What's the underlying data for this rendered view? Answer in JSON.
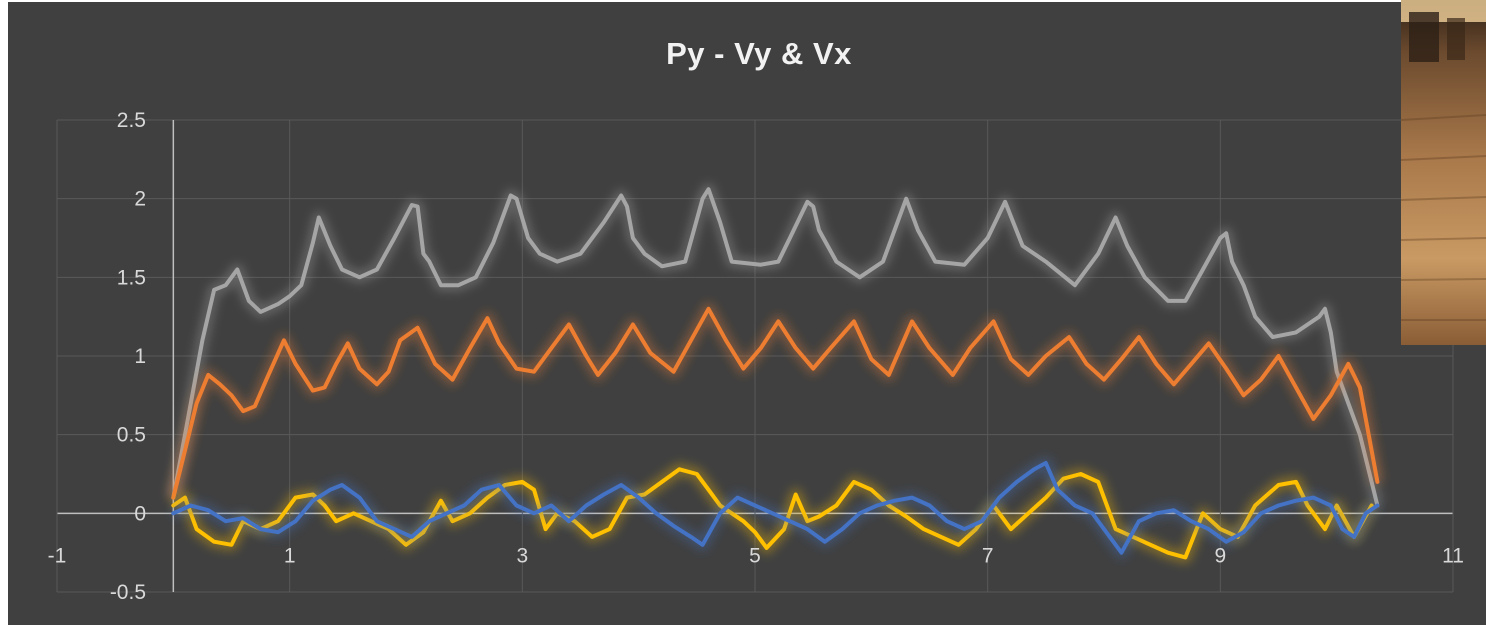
{
  "chart_data": {
    "type": "scatter",
    "title": "Py - Vy & Vx",
    "xlim": [
      -1,
      11
    ],
    "ylim": [
      -0.5,
      2.5
    ],
    "x_ticks": [
      -1,
      1,
      3,
      5,
      7,
      9,
      11
    ],
    "x_tick_labels": [
      "-1",
      "1",
      "3",
      "5",
      "7",
      "9",
      "11"
    ],
    "y_ticks": [
      -0.5,
      0,
      0.5,
      1,
      1.5,
      2,
      2.5
    ],
    "y_tick_labels": [
      "-0.5",
      "0",
      "0.5",
      "1",
      "1.5",
      "2",
      "2.5"
    ],
    "grid": true,
    "legend": "none",
    "series": [
      {
        "color": "#a5a5a5",
        "points": [
          [
            0,
            0.1
          ],
          [
            0.05,
            0.3
          ],
          [
            0.15,
            0.7
          ],
          [
            0.25,
            1.1
          ],
          [
            0.35,
            1.42
          ],
          [
            0.45,
            1.45
          ],
          [
            0.55,
            1.55
          ],
          [
            0.65,
            1.35
          ],
          [
            0.75,
            1.28
          ],
          [
            0.9,
            1.33
          ],
          [
            1.0,
            1.38
          ],
          [
            1.1,
            1.45
          ],
          [
            1.2,
            1.72
          ],
          [
            1.25,
            1.88
          ],
          [
            1.35,
            1.7
          ],
          [
            1.45,
            1.55
          ],
          [
            1.6,
            1.5
          ],
          [
            1.75,
            1.55
          ],
          [
            1.9,
            1.75
          ],
          [
            2.05,
            1.96
          ],
          [
            2.1,
            1.95
          ],
          [
            2.15,
            1.65
          ],
          [
            2.2,
            1.6
          ],
          [
            2.3,
            1.45
          ],
          [
            2.45,
            1.45
          ],
          [
            2.6,
            1.5
          ],
          [
            2.75,
            1.72
          ],
          [
            2.9,
            2.02
          ],
          [
            2.95,
            2.0
          ],
          [
            3.05,
            1.75
          ],
          [
            3.15,
            1.65
          ],
          [
            3.3,
            1.6
          ],
          [
            3.5,
            1.65
          ],
          [
            3.7,
            1.85
          ],
          [
            3.85,
            2.02
          ],
          [
            3.9,
            1.95
          ],
          [
            3.95,
            1.75
          ],
          [
            4.05,
            1.65
          ],
          [
            4.2,
            1.57
          ],
          [
            4.4,
            1.6
          ],
          [
            4.55,
            2.0
          ],
          [
            4.6,
            2.06
          ],
          [
            4.7,
            1.85
          ],
          [
            4.8,
            1.6
          ],
          [
            5.05,
            1.58
          ],
          [
            5.2,
            1.6
          ],
          [
            5.3,
            1.75
          ],
          [
            5.45,
            1.98
          ],
          [
            5.5,
            1.95
          ],
          [
            5.55,
            1.8
          ],
          [
            5.7,
            1.6
          ],
          [
            5.9,
            1.5
          ],
          [
            6.1,
            1.6
          ],
          [
            6.25,
            1.9
          ],
          [
            6.3,
            2.0
          ],
          [
            6.4,
            1.8
          ],
          [
            6.55,
            1.6
          ],
          [
            6.8,
            1.58
          ],
          [
            7.0,
            1.75
          ],
          [
            7.15,
            1.98
          ],
          [
            7.3,
            1.7
          ],
          [
            7.5,
            1.6
          ],
          [
            7.75,
            1.45
          ],
          [
            7.95,
            1.65
          ],
          [
            8.1,
            1.88
          ],
          [
            8.2,
            1.7
          ],
          [
            8.35,
            1.5
          ],
          [
            8.55,
            1.35
          ],
          [
            8.7,
            1.35
          ],
          [
            8.85,
            1.55
          ],
          [
            9.0,
            1.75
          ],
          [
            9.05,
            1.78
          ],
          [
            9.1,
            1.6
          ],
          [
            9.2,
            1.45
          ],
          [
            9.3,
            1.25
          ],
          [
            9.45,
            1.12
          ],
          [
            9.65,
            1.15
          ],
          [
            9.85,
            1.25
          ],
          [
            9.9,
            1.3
          ],
          [
            9.95,
            1.15
          ],
          [
            10.0,
            0.9
          ],
          [
            10.1,
            0.7
          ],
          [
            10.2,
            0.5
          ],
          [
            10.3,
            0.2
          ],
          [
            10.35,
            0.05
          ]
        ]
      },
      {
        "color": "#ed7d31",
        "points": [
          [
            0,
            0.1
          ],
          [
            0.1,
            0.4
          ],
          [
            0.2,
            0.7
          ],
          [
            0.3,
            0.88
          ],
          [
            0.4,
            0.82
          ],
          [
            0.5,
            0.75
          ],
          [
            0.6,
            0.65
          ],
          [
            0.7,
            0.68
          ],
          [
            0.8,
            0.85
          ],
          [
            0.95,
            1.1
          ],
          [
            1.05,
            0.95
          ],
          [
            1.2,
            0.78
          ],
          [
            1.3,
            0.8
          ],
          [
            1.4,
            0.95
          ],
          [
            1.5,
            1.08
          ],
          [
            1.6,
            0.92
          ],
          [
            1.75,
            0.82
          ],
          [
            1.85,
            0.9
          ],
          [
            1.95,
            1.1
          ],
          [
            2.1,
            1.18
          ],
          [
            2.25,
            0.95
          ],
          [
            2.4,
            0.85
          ],
          [
            2.55,
            1.05
          ],
          [
            2.7,
            1.24
          ],
          [
            2.8,
            1.08
          ],
          [
            2.95,
            0.92
          ],
          [
            3.1,
            0.9
          ],
          [
            3.25,
            1.05
          ],
          [
            3.4,
            1.2
          ],
          [
            3.55,
            1.0
          ],
          [
            3.65,
            0.88
          ],
          [
            3.8,
            1.02
          ],
          [
            3.95,
            1.2
          ],
          [
            4.1,
            1.02
          ],
          [
            4.3,
            0.9
          ],
          [
            4.45,
            1.1
          ],
          [
            4.6,
            1.3
          ],
          [
            4.75,
            1.1
          ],
          [
            4.9,
            0.92
          ],
          [
            5.05,
            1.05
          ],
          [
            5.2,
            1.22
          ],
          [
            5.35,
            1.05
          ],
          [
            5.5,
            0.92
          ],
          [
            5.65,
            1.05
          ],
          [
            5.85,
            1.22
          ],
          [
            6.0,
            0.98
          ],
          [
            6.15,
            0.88
          ],
          [
            6.35,
            1.22
          ],
          [
            6.5,
            1.05
          ],
          [
            6.7,
            0.88
          ],
          [
            6.85,
            1.05
          ],
          [
            7.05,
            1.22
          ],
          [
            7.2,
            0.98
          ],
          [
            7.35,
            0.88
          ],
          [
            7.5,
            1.0
          ],
          [
            7.7,
            1.12
          ],
          [
            7.85,
            0.95
          ],
          [
            8.0,
            0.85
          ],
          [
            8.15,
            0.98
          ],
          [
            8.3,
            1.12
          ],
          [
            8.45,
            0.95
          ],
          [
            8.6,
            0.82
          ],
          [
            8.75,
            0.95
          ],
          [
            8.9,
            1.08
          ],
          [
            9.05,
            0.92
          ],
          [
            9.2,
            0.75
          ],
          [
            9.35,
            0.85
          ],
          [
            9.5,
            1.0
          ],
          [
            9.65,
            0.8
          ],
          [
            9.8,
            0.6
          ],
          [
            9.95,
            0.75
          ],
          [
            10.1,
            0.95
          ],
          [
            10.2,
            0.8
          ],
          [
            10.3,
            0.4
          ],
          [
            10.35,
            0.2
          ]
        ]
      },
      {
        "color": "#ffc000",
        "points": [
          [
            0,
            0.05
          ],
          [
            0.1,
            0.1
          ],
          [
            0.2,
            -0.1
          ],
          [
            0.35,
            -0.18
          ],
          [
            0.5,
            -0.2
          ],
          [
            0.6,
            -0.05
          ],
          [
            0.75,
            -0.1
          ],
          [
            0.9,
            -0.05
          ],
          [
            1.05,
            0.1
          ],
          [
            1.2,
            0.12
          ],
          [
            1.3,
            0.05
          ],
          [
            1.4,
            -0.05
          ],
          [
            1.55,
            0.0
          ],
          [
            1.7,
            -0.05
          ],
          [
            1.85,
            -0.1
          ],
          [
            2.0,
            -0.2
          ],
          [
            2.15,
            -0.12
          ],
          [
            2.3,
            0.08
          ],
          [
            2.4,
            -0.05
          ],
          [
            2.55,
            0.0
          ],
          [
            2.7,
            0.1
          ],
          [
            2.85,
            0.18
          ],
          [
            3.0,
            0.2
          ],
          [
            3.1,
            0.15
          ],
          [
            3.2,
            -0.1
          ],
          [
            3.3,
            0.0
          ],
          [
            3.45,
            -0.05
          ],
          [
            3.6,
            -0.15
          ],
          [
            3.75,
            -0.1
          ],
          [
            3.9,
            0.1
          ],
          [
            4.05,
            0.12
          ],
          [
            4.2,
            0.2
          ],
          [
            4.35,
            0.28
          ],
          [
            4.5,
            0.25
          ],
          [
            4.6,
            0.15
          ],
          [
            4.7,
            0.05
          ],
          [
            4.8,
            0.0
          ],
          [
            4.9,
            -0.05
          ],
          [
            5.0,
            -0.12
          ],
          [
            5.1,
            -0.22
          ],
          [
            5.25,
            -0.1
          ],
          [
            5.35,
            0.12
          ],
          [
            5.45,
            -0.05
          ],
          [
            5.55,
            -0.02
          ],
          [
            5.7,
            0.05
          ],
          [
            5.85,
            0.2
          ],
          [
            6.0,
            0.15
          ],
          [
            6.15,
            0.05
          ],
          [
            6.3,
            -0.02
          ],
          [
            6.45,
            -0.1
          ],
          [
            6.6,
            -0.15
          ],
          [
            6.75,
            -0.2
          ],
          [
            6.9,
            -0.1
          ],
          [
            7.05,
            0.05
          ],
          [
            7.2,
            -0.1
          ],
          [
            7.35,
            0.0
          ],
          [
            7.5,
            0.1
          ],
          [
            7.65,
            0.22
          ],
          [
            7.8,
            0.25
          ],
          [
            7.95,
            0.2
          ],
          [
            8.1,
            -0.1
          ],
          [
            8.25,
            -0.15
          ],
          [
            8.4,
            -0.2
          ],
          [
            8.55,
            -0.25
          ],
          [
            8.7,
            -0.28
          ],
          [
            8.85,
            0.0
          ],
          [
            9.0,
            -0.1
          ],
          [
            9.15,
            -0.15
          ],
          [
            9.3,
            0.05
          ],
          [
            9.5,
            0.18
          ],
          [
            9.65,
            0.2
          ],
          [
            9.75,
            0.05
          ],
          [
            9.9,
            -0.1
          ],
          [
            10.0,
            0.05
          ],
          [
            10.15,
            -0.15
          ],
          [
            10.3,
            0.05
          ]
        ]
      },
      {
        "color": "#4472c4",
        "points": [
          [
            0,
            0.0
          ],
          [
            0.15,
            0.05
          ],
          [
            0.3,
            0.02
          ],
          [
            0.45,
            -0.05
          ],
          [
            0.6,
            -0.03
          ],
          [
            0.75,
            -0.1
          ],
          [
            0.9,
            -0.12
          ],
          [
            1.05,
            -0.05
          ],
          [
            1.2,
            0.08
          ],
          [
            1.35,
            0.15
          ],
          [
            1.45,
            0.18
          ],
          [
            1.6,
            0.1
          ],
          [
            1.75,
            -0.05
          ],
          [
            1.9,
            -0.1
          ],
          [
            2.05,
            -0.15
          ],
          [
            2.2,
            -0.05
          ],
          [
            2.35,
            0.0
          ],
          [
            2.5,
            0.05
          ],
          [
            2.65,
            0.15
          ],
          [
            2.8,
            0.18
          ],
          [
            2.95,
            0.05
          ],
          [
            3.1,
            0.0
          ],
          [
            3.25,
            0.05
          ],
          [
            3.4,
            -0.05
          ],
          [
            3.55,
            0.05
          ],
          [
            3.7,
            0.12
          ],
          [
            3.85,
            0.18
          ],
          [
            4.0,
            0.1
          ],
          [
            4.15,
            0.0
          ],
          [
            4.3,
            -0.08
          ],
          [
            4.45,
            -0.15
          ],
          [
            4.55,
            -0.2
          ],
          [
            4.7,
            0.0
          ],
          [
            4.85,
            0.1
          ],
          [
            5.0,
            0.05
          ],
          [
            5.15,
            0.0
          ],
          [
            5.3,
            -0.05
          ],
          [
            5.45,
            -0.1
          ],
          [
            5.6,
            -0.18
          ],
          [
            5.75,
            -0.1
          ],
          [
            5.9,
            0.0
          ],
          [
            6.05,
            0.05
          ],
          [
            6.2,
            0.08
          ],
          [
            6.35,
            0.1
          ],
          [
            6.5,
            0.05
          ],
          [
            6.65,
            -0.05
          ],
          [
            6.8,
            -0.1
          ],
          [
            6.95,
            -0.05
          ],
          [
            7.1,
            0.1
          ],
          [
            7.25,
            0.2
          ],
          [
            7.4,
            0.28
          ],
          [
            7.5,
            0.32
          ],
          [
            7.6,
            0.15
          ],
          [
            7.75,
            0.05
          ],
          [
            7.9,
            0.0
          ],
          [
            8.05,
            -0.15
          ],
          [
            8.15,
            -0.25
          ],
          [
            8.3,
            -0.05
          ],
          [
            8.45,
            0.0
          ],
          [
            8.6,
            0.02
          ],
          [
            8.75,
            -0.05
          ],
          [
            8.9,
            -0.1
          ],
          [
            9.05,
            -0.18
          ],
          [
            9.2,
            -0.12
          ],
          [
            9.35,
            0.0
          ],
          [
            9.5,
            0.05
          ],
          [
            9.65,
            0.08
          ],
          [
            9.8,
            0.1
          ],
          [
            9.95,
            0.05
          ],
          [
            10.05,
            -0.1
          ],
          [
            10.15,
            -0.15
          ],
          [
            10.25,
            0.0
          ],
          [
            10.35,
            0.05
          ]
        ]
      }
    ]
  },
  "photo": {
    "colors": [
      "#2d2017",
      "#6b4a2e",
      "#a8784a",
      "#c99a63",
      "#e8c894"
    ]
  }
}
